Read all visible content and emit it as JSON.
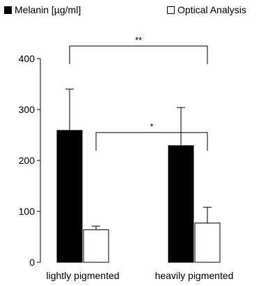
{
  "chart_data": {
    "type": "bar",
    "categories": [
      "lightly pigmented",
      "heavily pigmented"
    ],
    "series": [
      {
        "name": "Melanin [µg/ml]",
        "color": "#000000",
        "values": [
          259,
          229
        ],
        "error": [
          81,
          75
        ]
      },
      {
        "name": "Optical Analysis",
        "color": "#ffffff",
        "values": [
          64,
          77
        ],
        "error": [
          7,
          31
        ]
      }
    ],
    "y_ticks": [
      0,
      100,
      200,
      300,
      400
    ],
    "ylim": [
      0,
      400
    ],
    "legend_position": "top",
    "grid": false,
    "significance": [
      {
        "label": "**",
        "from_series": 0,
        "from_category": 0,
        "to_series": 1,
        "to_category": 1
      },
      {
        "label": "*",
        "from_series": 1,
        "from_category": 0,
        "to_series": 1,
        "to_category": 1
      }
    ]
  }
}
